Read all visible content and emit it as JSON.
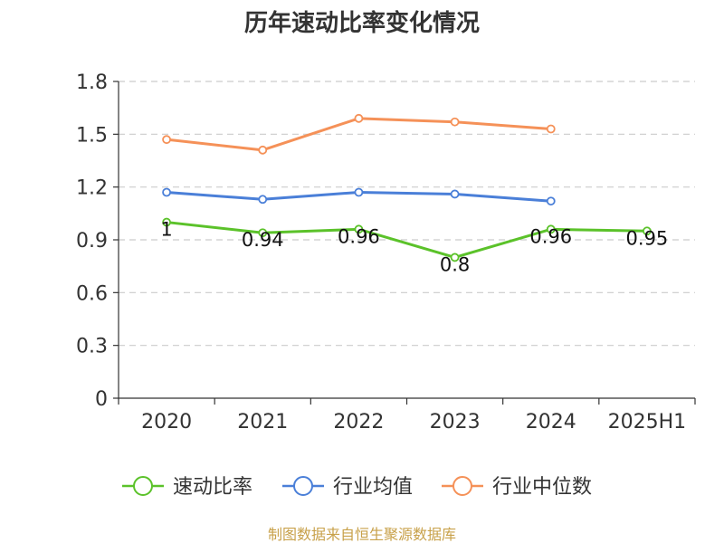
{
  "chart_data": {
    "type": "line",
    "title": "历年速动比率变化情况",
    "categories": [
      "2020",
      "2021",
      "2022",
      "2023",
      "2024",
      "2025H1"
    ],
    "ylim": [
      0,
      1.8
    ],
    "yticks": [
      "0",
      "0.3",
      "0.6",
      "0.9",
      "1.2",
      "1.5",
      "1.8"
    ],
    "grid": true,
    "legend_position": "bottom",
    "series": [
      {
        "name": "速动比率",
        "color": "#5bc22a",
        "values": [
          1.0,
          0.94,
          0.96,
          0.8,
          0.96,
          0.95
        ],
        "labels": [
          "1",
          "0.94",
          "0.96",
          "0.8",
          "0.96",
          "0.95"
        ]
      },
      {
        "name": "行业均值",
        "color": "#4a7fd8",
        "values": [
          1.17,
          1.13,
          1.17,
          1.16,
          1.12,
          null
        ]
      },
      {
        "name": "行业中位数",
        "color": "#f59158",
        "values": [
          1.47,
          1.41,
          1.59,
          1.57,
          1.53,
          null
        ]
      }
    ],
    "source": "制图数据来自恒生聚源数据库"
  }
}
